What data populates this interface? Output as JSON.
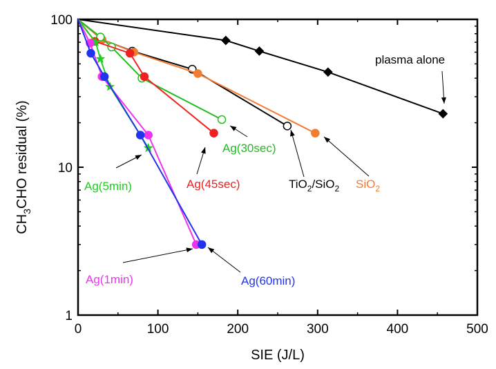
{
  "chart_data": {
    "type": "scatter",
    "x_label": "SIE (J/L)",
    "y_label": {
      "main": "CH",
      "sub": "3",
      "rest": "CHO residual (%)"
    },
    "xlim": [
      0,
      500
    ],
    "ylim": [
      1,
      100
    ],
    "y_scale": "log",
    "x_ticks": [
      "0",
      "100",
      "200",
      "300",
      "400",
      "500"
    ],
    "y_ticks": [
      "1",
      "10",
      "100"
    ],
    "series": [
      {
        "label": "plasma alone",
        "color": "#000000",
        "marker": "diamond",
        "fill": "solid",
        "x": [
          0,
          185,
          227,
          313,
          457
        ],
        "y": [
          100,
          72,
          61,
          44,
          23
        ]
      },
      {
        "label": "TiO2/SiO2",
        "color": "#000000",
        "marker": "circle",
        "fill": "open",
        "x": [
          0,
          30,
          68,
          143,
          262
        ],
        "y": [
          100,
          73,
          61,
          46,
          19
        ]
      },
      {
        "label": "SiO2",
        "color": "#f07d32",
        "marker": "circle",
        "fill": "solid",
        "x": [
          0,
          30,
          70,
          150,
          297
        ],
        "y": [
          100,
          73,
          60,
          43,
          17
        ]
      },
      {
        "label": "Ag(30sec)",
        "color": "#22bb22",
        "marker": "circle",
        "fill": "open",
        "x": [
          0,
          28,
          42,
          80,
          180
        ],
        "y": [
          100,
          76,
          65,
          40,
          21
        ]
      },
      {
        "label": "Ag(45sec)",
        "color": "#ee2020",
        "marker": "circle",
        "fill": "solid",
        "x": [
          0,
          21,
          65,
          83,
          170
        ],
        "y": [
          100,
          71,
          59,
          41,
          17
        ]
      },
      {
        "label": "Ag(5min)",
        "color": "#22cc22",
        "marker": "star",
        "fill": "solid",
        "x": [
          0,
          22,
          28,
          40,
          88
        ],
        "y": [
          100,
          70,
          54,
          35,
          13.5
        ]
      },
      {
        "label": "Ag(1min)",
        "color": "#ee33ee",
        "marker": "circle",
        "fill": "solid",
        "x": [
          0,
          15,
          30,
          88,
          148
        ],
        "y": [
          100,
          69,
          41,
          16.5,
          3.0
        ]
      },
      {
        "label": "Ag(60min)",
        "color": "#2233ee",
        "marker": "circle",
        "fill": "solid",
        "x": [
          0,
          16,
          33,
          78,
          155
        ],
        "y": [
          100,
          59,
          41,
          16.5,
          3.0
        ]
      }
    ],
    "annotations": [
      {
        "text": "plasma alone",
        "color": "#000000"
      },
      {
        "text_main": "TiO",
        "text_sub": "2",
        "text_mid": "/SiO",
        "text_sub2": "2",
        "color": "#000000"
      },
      {
        "text_main": "SiO",
        "text_sub": "2",
        "color": "#f07d32"
      },
      {
        "text": "Ag(30sec)",
        "color": "#22bb22"
      },
      {
        "text": "Ag(45sec)",
        "color": "#ee2020"
      },
      {
        "text": "Ag(5min)",
        "color": "#22cc22"
      },
      {
        "text": "Ag(1min)",
        "color": "#ee33ee"
      },
      {
        "text": "Ag(60min)",
        "color": "#2233ee"
      }
    ]
  }
}
